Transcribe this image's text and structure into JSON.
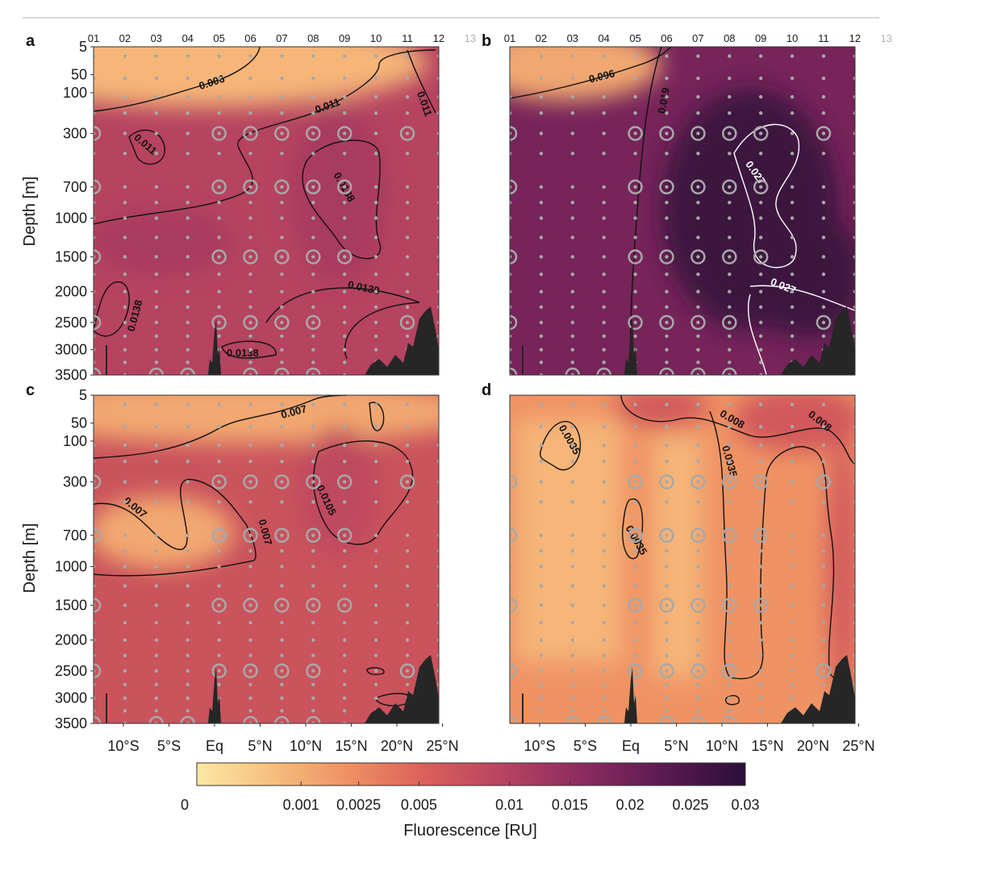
{
  "colors": {
    "ramp": [
      "#fbe8a4",
      "#f6be7c",
      "#ee8f62",
      "#da5f5a",
      "#b44160",
      "#8a2b60",
      "#5b1a53",
      "#2c0e38"
    ],
    "contour_dark": "#111111",
    "contour_light": "#ffffff",
    "station_marker": "#a8a8a8",
    "seafloor": "#262626",
    "top_rule": "#b5b5b5"
  },
  "chart_data": [
    {
      "panel": "a",
      "type": "heatmap",
      "ylabel": "Depth [m]",
      "station_labels": [
        "01",
        "02",
        "03",
        "04",
        "05",
        "06",
        "07",
        "08",
        "09",
        "10",
        "11",
        "12",
        "13"
      ],
      "depth_ticks": [
        5,
        50,
        100,
        300,
        700,
        1000,
        1500,
        2000,
        2500,
        3000,
        3500
      ],
      "xtick_labels": [],
      "field": {
        "surface_value": 0.0015,
        "deep_value": 0.0125,
        "hotspot_value": 0.0145
      },
      "contours": [
        {
          "value": "0.006",
          "color": "dark"
        },
        {
          "value": "0.011",
          "color": "dark"
        },
        {
          "value": "0.011",
          "color": "dark"
        },
        {
          "value": "0.011",
          "color": "dark"
        },
        {
          "value": "0.0138",
          "color": "dark"
        },
        {
          "value": "0.0138",
          "color": "dark"
        },
        {
          "value": "0.0138",
          "color": "dark"
        },
        {
          "value": "0.0138",
          "color": "dark"
        }
      ]
    },
    {
      "panel": "b",
      "type": "heatmap",
      "ylabel": "",
      "station_labels": [
        "01",
        "02",
        "03",
        "04",
        "05",
        "06",
        "07",
        "08",
        "09",
        "10",
        "11",
        "12",
        "13"
      ],
      "depth_ticks": [
        5,
        50,
        100,
        300,
        700,
        1000,
        1500,
        2000,
        2500,
        3000,
        3500
      ],
      "xtick_labels": [],
      "field": {
        "surface_value": 0.002,
        "deep_value": 0.021,
        "hotspot_value": 0.028
      },
      "contours": [
        {
          "value": "0.006",
          "color": "dark"
        },
        {
          "value": "0.019",
          "color": "dark"
        },
        {
          "value": "0.027",
          "color": "light"
        },
        {
          "value": "0.027",
          "color": "light"
        }
      ]
    },
    {
      "panel": "c",
      "type": "heatmap",
      "ylabel": "Depth [m]",
      "station_labels": [],
      "depth_ticks": [
        5,
        50,
        100,
        300,
        700,
        1000,
        1500,
        2000,
        2500,
        3000,
        3500
      ],
      "xtick_labels": [
        "10°S",
        "5°S",
        "Eq",
        "5°N",
        "10°N",
        "15°N",
        "20°N",
        "25°N"
      ],
      "field": {
        "surface_value": 0.002,
        "deep_value": 0.0095,
        "hotspot_value": 0.0112
      },
      "contours": [
        {
          "value": "0.007",
          "color": "dark"
        },
        {
          "value": "0.007",
          "color": "dark"
        },
        {
          "value": "0.007",
          "color": "dark"
        },
        {
          "value": "0.0105",
          "color": "dark"
        }
      ]
    },
    {
      "panel": "d",
      "type": "heatmap",
      "ylabel": "",
      "station_labels": [],
      "depth_ticks": [],
      "xtick_labels": [
        "10°S",
        "5°S",
        "Eq",
        "5°N",
        "10°N",
        "15°N",
        "20°N",
        "25°N"
      ],
      "field": {
        "surface_value": 0.0015,
        "deep_value": 0.003,
        "hotspot_value": 0.0085
      },
      "contours": [
        {
          "value": "0.0035",
          "color": "dark"
        },
        {
          "value": "0.0035",
          "color": "dark"
        },
        {
          "value": "0.0035",
          "color": "dark"
        },
        {
          "value": "0.008",
          "color": "dark"
        },
        {
          "value": "0.008",
          "color": "dark"
        }
      ]
    }
  ],
  "colorbar": {
    "label": "Fluorescence [RU]",
    "ticks": [
      "0",
      "0.001",
      "0.0025",
      "0.005",
      "0.01",
      "0.015",
      "0.02",
      "0.025",
      "0.03"
    ],
    "range": [
      0,
      0.03
    ]
  }
}
